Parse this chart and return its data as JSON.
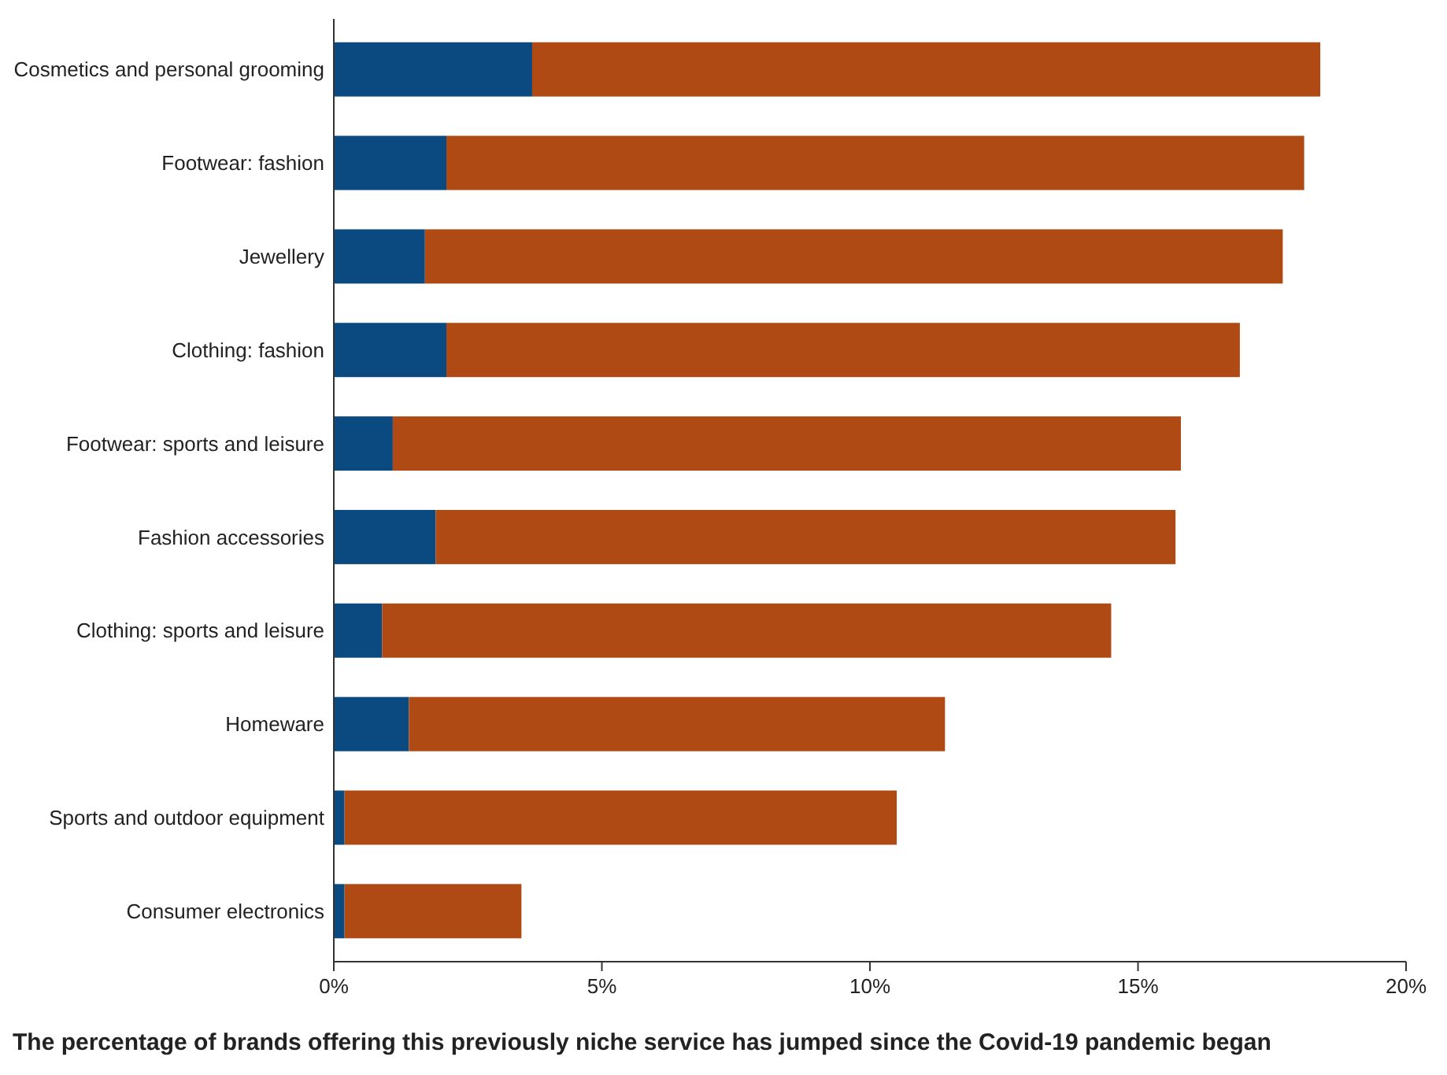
{
  "chart_data": {
    "type": "bar",
    "orientation": "horizontal",
    "stacked": true,
    "categories": [
      "Cosmetics and personal grooming",
      "Footwear: fashion",
      "Jewellery",
      "Clothing: fashion",
      "Footwear: sports and leisure",
      "Fashion accessories",
      "Clothing: sports and leisure",
      "Homeware",
      "Sports and outdoor equipment",
      "Consumer electronics"
    ],
    "series": [
      {
        "color": "#0b4a80",
        "values": [
          3.7,
          2.1,
          1.7,
          2.1,
          1.1,
          1.9,
          0.9,
          1.4,
          0.2,
          0.2
        ]
      },
      {
        "color": "#b04a14",
        "values": [
          14.7,
          16.0,
          16.0,
          14.8,
          14.7,
          13.8,
          13.6,
          10.0,
          10.3,
          3.3
        ]
      }
    ],
    "xlim": [
      0,
      20
    ],
    "xticks": [
      {
        "value": 0,
        "label": "0%"
      },
      {
        "value": 5,
        "label": "5%"
      },
      {
        "value": 10,
        "label": "10%"
      },
      {
        "value": 15,
        "label": "15%"
      },
      {
        "value": 20,
        "label": "20%"
      }
    ],
    "grid": false,
    "annotations": [
      "The percentage of brands offering this previously niche service has jumped since the Covid-19 pandemic began"
    ]
  }
}
